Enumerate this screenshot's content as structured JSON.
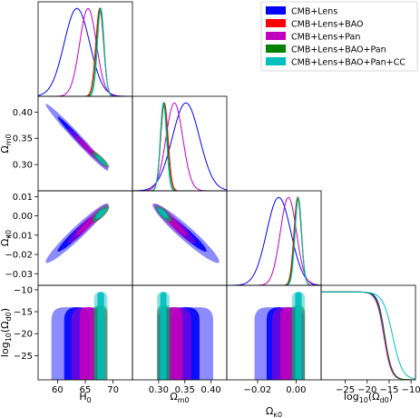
{
  "chart_data": {
    "type": "triangle",
    "legend": {
      "location": "top-right",
      "entries": [
        {
          "name": "CMB+Lens",
          "color": "#0000ff"
        },
        {
          "name": "CMB+Lens+BAO",
          "color": "#ff0000"
        },
        {
          "name": "CMB+Lens+Pan",
          "color": "#bf00bf"
        },
        {
          "name": "CMB+Lens+BAO+Pan",
          "color": "#008000"
        },
        {
          "name": "CMB+Lens+BAO+Pan+CC",
          "color": "#00bfbf"
        }
      ]
    },
    "parameters": [
      {
        "id": "H0",
        "label": "H",
        "sub": "0",
        "range": [
          56.5,
          73.5
        ],
        "ticks": [
          60,
          65,
          70
        ],
        "tick_labels": [
          "60",
          "65",
          "70"
        ]
      },
      {
        "id": "Om",
        "label": "Ω",
        "sub": "m0",
        "range": [
          0.25,
          0.43
        ],
        "ticks": [
          0.3,
          0.35,
          0.4
        ],
        "tick_labels": [
          "0.30",
          "0.35",
          "0.40"
        ]
      },
      {
        "id": "Ok",
        "label": "Ω",
        "sub": "κ0",
        "range": [
          -0.036,
          0.013
        ],
        "ticks": [
          -0.03,
          -0.02,
          -0.01,
          0.0,
          0.01
        ],
        "tick_labels": [
          "−0.03",
          "−0.02",
          "−0.01",
          "0.00",
          "0.01"
        ],
        "x_ticks": [
          -0.02,
          0.0
        ],
        "x_tick_labels": [
          "−0.02",
          "0.00"
        ]
      },
      {
        "id": "logOd",
        "label": "log",
        "sub": "10",
        "suffix": "(Ω",
        "suffix_sub": "d0",
        "suffix_end": ")",
        "range": [
          -30.5,
          -9
        ],
        "ticks": [
          -25,
          -20,
          -15,
          -10
        ],
        "tick_labels": [
          "−25",
          "−20",
          "−15",
          "−10"
        ]
      }
    ],
    "series": [
      {
        "name": "CMB+Lens",
        "color": "#0000ff",
        "marginals": {
          "H0": {
            "mean": 63.5,
            "sd": 2.3
          },
          "Om": {
            "mean": 0.352,
            "sd": 0.026
          },
          "Ok": {
            "mean": -0.009,
            "sd": 0.0063
          },
          "logOd": {
            "plateau_end": -19.5,
            "half_point": -16.0,
            "steep": 1.3
          }
        },
        "ellipses": [
          {
            "x": "H0",
            "y": "Om",
            "cx": 63.5,
            "cy": 0.352,
            "sx": 2.3,
            "sy": 0.026,
            "rho": -0.985
          },
          {
            "x": "H0",
            "y": "Ok",
            "cx": 63.5,
            "cy": -0.009,
            "sx": 2.3,
            "sy": 0.0063,
            "rho": 0.96
          },
          {
            "x": "Om",
            "y": "Ok",
            "cx": 0.352,
            "cy": -0.009,
            "sx": 0.026,
            "sy": 0.0063,
            "rho": -0.95
          }
        ],
        "log_bands": [
          {
            "x": "H0",
            "center": 63.5,
            "sd": 2.3,
            "top": -14.0
          },
          {
            "x": "Om",
            "center": 0.352,
            "sd": 0.026,
            "top": -14.0
          },
          {
            "x": "Ok",
            "center": -0.009,
            "sd": 0.0063,
            "top": -14.0
          }
        ]
      },
      {
        "name": "CMB+Lens+BAO",
        "color": "#ff0000",
        "marginals": {
          "H0": {
            "mean": 67.6,
            "sd": 0.7
          },
          "Om": {
            "mean": 0.311,
            "sd": 0.007
          },
          "Ok": {
            "mean": 0.0008,
            "sd": 0.0019
          },
          "logOd": {
            "plateau_end": -20.0,
            "half_point": -16.0,
            "steep": 1.2
          }
        },
        "ellipses": [
          {
            "x": "H0",
            "y": "Om",
            "cx": 67.6,
            "cy": 0.311,
            "sx": 0.7,
            "sy": 0.007,
            "rho": -0.9
          },
          {
            "x": "H0",
            "y": "Ok",
            "cx": 67.6,
            "cy": 0.0008,
            "sx": 0.7,
            "sy": 0.0019,
            "rho": 0.8
          },
          {
            "x": "Om",
            "y": "Ok",
            "cx": 0.311,
            "cy": 0.0008,
            "sx": 0.007,
            "sy": 0.0019,
            "rho": -0.8
          }
        ],
        "log_bands": [
          {
            "x": "H0",
            "center": 67.6,
            "sd": 0.7,
            "top": -14.0
          },
          {
            "x": "Om",
            "center": 0.311,
            "sd": 0.007,
            "top": -14.0
          },
          {
            "x": "Ok",
            "center": 0.0008,
            "sd": 0.0019,
            "top": -14.0
          }
        ]
      },
      {
        "name": "CMB+Lens+Pan",
        "color": "#bf00bf",
        "marginals": {
          "H0": {
            "mean": 65.5,
            "sd": 1.5
          },
          "Om": {
            "mean": 0.33,
            "sd": 0.016
          },
          "Ok": {
            "mean": -0.004,
            "sd": 0.0042
          },
          "logOd": {
            "plateau_end": -20.0,
            "half_point": -16.2,
            "steep": 1.2
          }
        },
        "ellipses": [
          {
            "x": "H0",
            "y": "Om",
            "cx": 65.5,
            "cy": 0.33,
            "sx": 1.5,
            "sy": 0.016,
            "rho": -0.98
          },
          {
            "x": "H0",
            "y": "Ok",
            "cx": 65.5,
            "cy": -0.004,
            "sx": 1.5,
            "sy": 0.0042,
            "rho": 0.95
          },
          {
            "x": "Om",
            "y": "Ok",
            "cx": 0.33,
            "cy": -0.004,
            "sx": 0.016,
            "sy": 0.0042,
            "rho": -0.94
          }
        ],
        "log_bands": [
          {
            "x": "H0",
            "center": 65.5,
            "sd": 1.5,
            "top": -14.0
          },
          {
            "x": "Om",
            "center": 0.33,
            "sd": 0.016,
            "top": -14.0
          },
          {
            "x": "Ok",
            "center": -0.004,
            "sd": 0.0042,
            "top": -14.0
          }
        ]
      },
      {
        "name": "CMB+Lens+BAO+Pan",
        "color": "#008000",
        "marginals": {
          "H0": {
            "mean": 67.7,
            "sd": 0.65
          },
          "Om": {
            "mean": 0.31,
            "sd": 0.0065
          },
          "Ok": {
            "mean": 0.001,
            "sd": 0.0018
          },
          "logOd": {
            "plateau_end": -20.0,
            "half_point": -16.0,
            "steep": 1.2
          }
        },
        "ellipses": [
          {
            "x": "H0",
            "y": "Om",
            "cx": 67.7,
            "cy": 0.31,
            "sx": 0.65,
            "sy": 0.0065,
            "rho": -0.9
          },
          {
            "x": "H0",
            "y": "Ok",
            "cx": 67.7,
            "cy": 0.001,
            "sx": 0.65,
            "sy": 0.0018,
            "rho": 0.8
          },
          {
            "x": "Om",
            "y": "Ok",
            "cx": 0.31,
            "cy": 0.001,
            "sx": 0.0065,
            "sy": 0.0018,
            "rho": -0.8
          }
        ],
        "log_bands": [
          {
            "x": "H0",
            "center": 67.7,
            "sd": 0.65,
            "top": -13.5
          },
          {
            "x": "Om",
            "center": 0.31,
            "sd": 0.0065,
            "top": -13.5
          },
          {
            "x": "Ok",
            "center": 0.001,
            "sd": 0.0018,
            "top": -13.5
          }
        ]
      },
      {
        "name": "CMB+Lens+BAO+Pan+CC",
        "color": "#00bfbf",
        "marginals": {
          "H0": {
            "mean": 67.8,
            "sd": 0.6
          },
          "Om": {
            "mean": 0.309,
            "sd": 0.006
          },
          "Ok": {
            "mean": 0.0012,
            "sd": 0.0017
          },
          "logOd": {
            "plateau_end": -17.5,
            "half_point": -14.2,
            "steep": 0.9
          }
        },
        "ellipses": [
          {
            "x": "H0",
            "y": "Om",
            "cx": 67.8,
            "cy": 0.309,
            "sx": 0.6,
            "sy": 0.006,
            "rho": -0.9
          },
          {
            "x": "H0",
            "y": "Ok",
            "cx": 67.8,
            "cy": 0.0012,
            "sx": 0.6,
            "sy": 0.0017,
            "rho": 0.8
          },
          {
            "x": "Om",
            "y": "Ok",
            "cx": 0.309,
            "cy": 0.0012,
            "sx": 0.006,
            "sy": 0.0017,
            "rho": -0.8
          }
        ],
        "log_bands": [
          {
            "x": "H0",
            "center": 67.8,
            "sd": 0.6,
            "top": -10.5
          },
          {
            "x": "Om",
            "center": 0.309,
            "sd": 0.006,
            "top": -10.5
          },
          {
            "x": "Ok",
            "center": 0.0012,
            "sd": 0.0017,
            "top": -10.5
          }
        ]
      }
    ]
  }
}
